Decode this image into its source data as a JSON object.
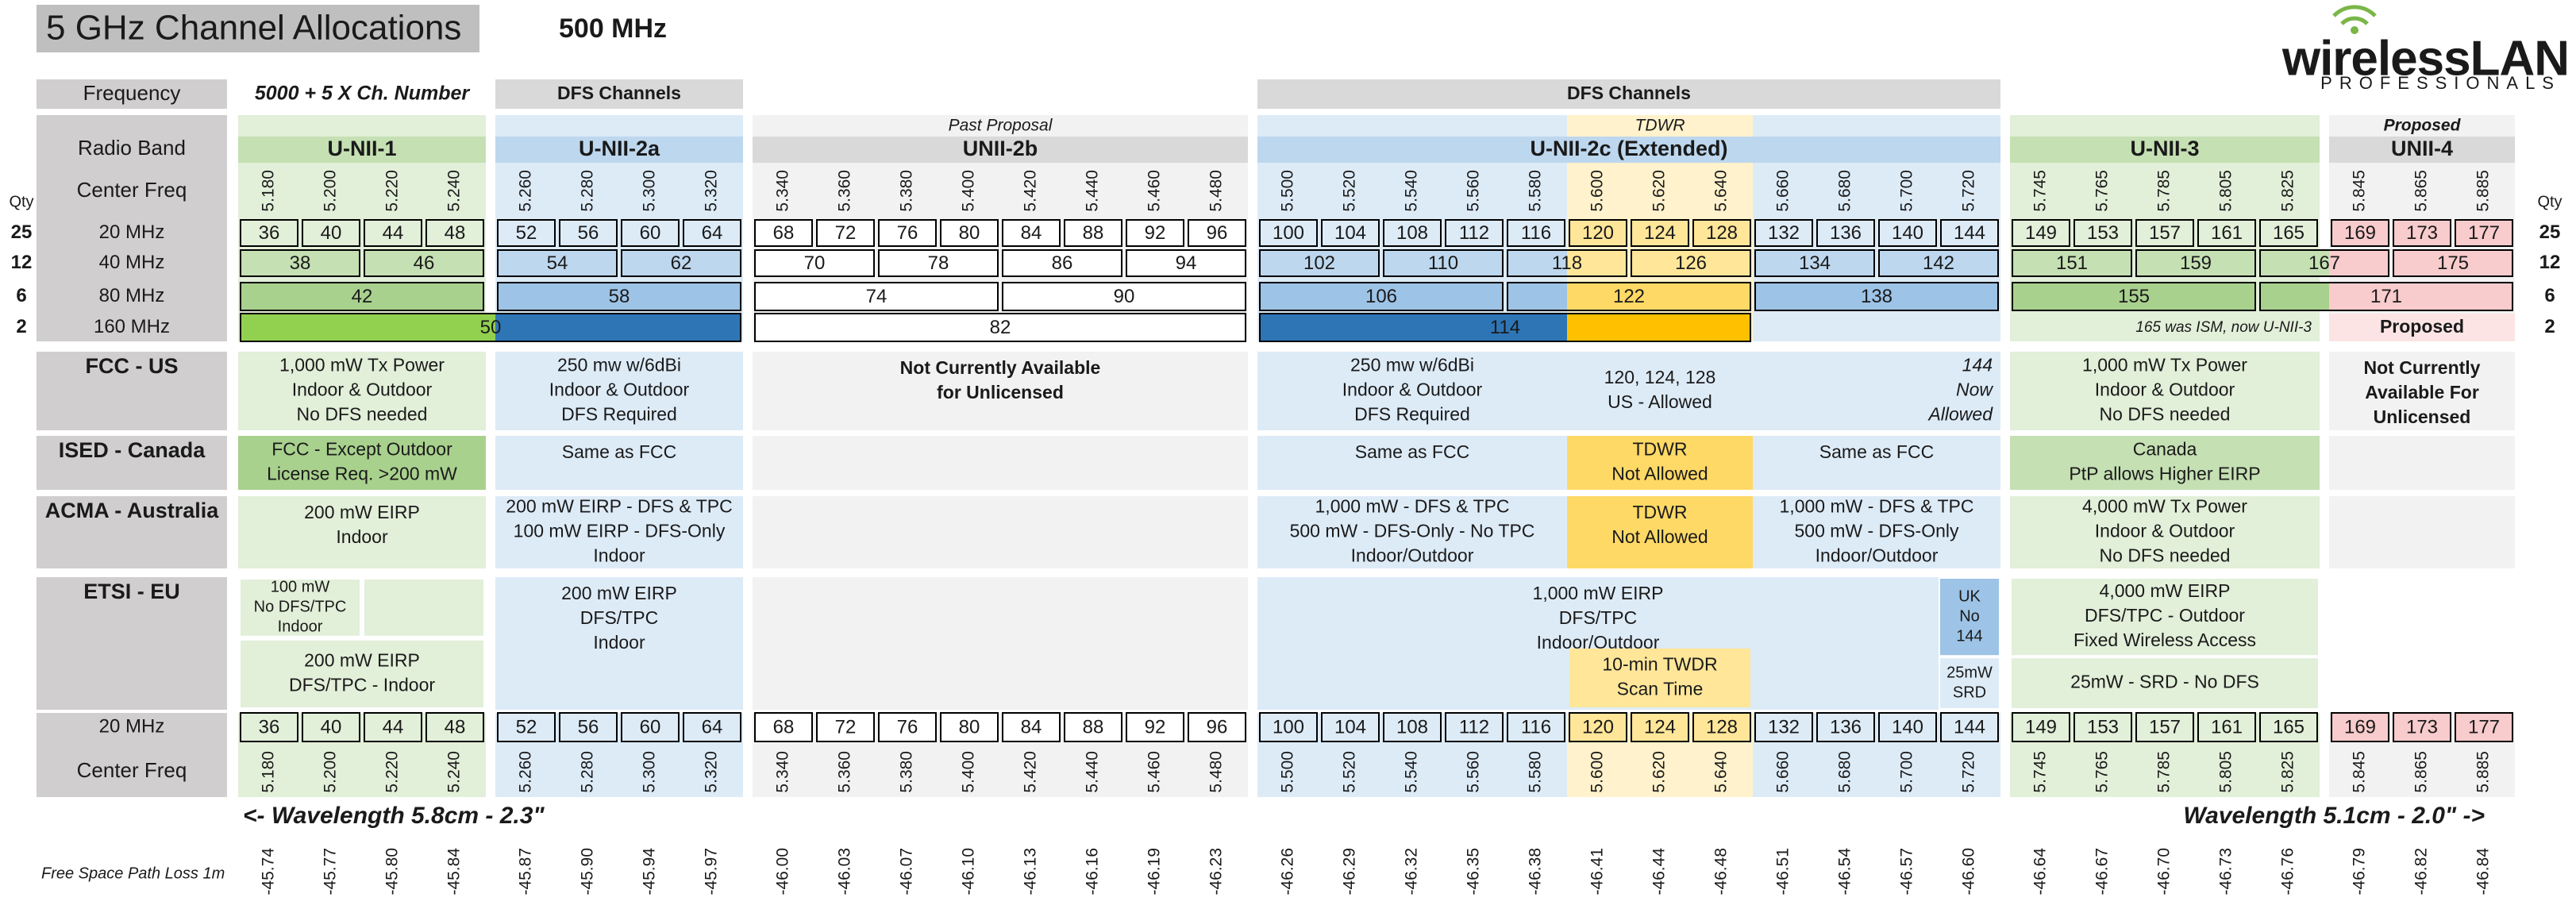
{
  "header": {
    "title": "5 GHz Channel Allocations",
    "span": "500 MHz",
    "logo": {
      "name": "wirelessLAN",
      "tagline": "PROFESSIONALS"
    }
  },
  "frequency_row": {
    "label": "Frequency",
    "formula": "5000 + 5 X Ch. Number",
    "dfs_labels": [
      "DFS Channels",
      "DFS Channels"
    ]
  },
  "band_row": {
    "label": "Radio Band",
    "bands": [
      {
        "name": "U-NII-1"
      },
      {
        "name": "U-NII-2a"
      },
      {
        "name": "UNII-2b",
        "note": "Past Proposal"
      },
      {
        "name": "U-NII-2c (Extended)",
        "note": "TDWR"
      },
      {
        "name": "U-NII-3"
      },
      {
        "name": "UNII-4",
        "note": "Proposed"
      }
    ]
  },
  "center_freq": {
    "label": "Center Freq",
    "values": [
      "5.180",
      "5.200",
      "5.220",
      "5.240",
      "5.260",
      "5.280",
      "5.300",
      "5.320",
      "5.340",
      "5.360",
      "5.380",
      "5.400",
      "5.420",
      "5.440",
      "5.460",
      "5.480",
      "5.500",
      "5.520",
      "5.540",
      "5.560",
      "5.580",
      "5.600",
      "5.620",
      "5.640",
      "5.660",
      "5.680",
      "5.700",
      "5.720",
      "5.745",
      "5.765",
      "5.785",
      "5.805",
      "5.825",
      "5.845",
      "5.865",
      "5.885"
    ]
  },
  "qty_label": "Qty",
  "widths": [
    {
      "label": "20 MHz",
      "qty": 25,
      "channels": [
        36,
        40,
        44,
        48,
        52,
        56,
        60,
        64,
        68,
        72,
        76,
        80,
        84,
        88,
        92,
        96,
        100,
        104,
        108,
        112,
        116,
        120,
        124,
        128,
        132,
        136,
        140,
        144,
        149,
        153,
        157,
        161,
        165,
        169,
        173,
        177
      ]
    },
    {
      "label": "40 MHz",
      "qty": 12,
      "channels": [
        38,
        46,
        54,
        62,
        70,
        78,
        86,
        94,
        102,
        110,
        118,
        126,
        134,
        142,
        151,
        159,
        167,
        175
      ]
    },
    {
      "label": "80 MHz",
      "qty": 6,
      "channels": [
        42,
        58,
        74,
        90,
        106,
        122,
        138,
        155,
        171
      ]
    },
    {
      "label": "160 MHz",
      "qty": 2,
      "channels": [
        50,
        82,
        114
      ]
    }
  ],
  "notes_160": {
    "ism": "165 was ISM, now U-NII-3",
    "proposed": "Proposed"
  },
  "regions": [
    {
      "name": "FCC - US",
      "cells": [
        [
          "1,000 mW Tx Power",
          "Indoor & Outdoor",
          "No DFS needed"
        ],
        [
          "250 mw w/6dBi",
          "Indoor & Outdoor",
          "DFS Required"
        ],
        [
          "Not Currently Available",
          "for Unlicensed"
        ],
        [
          "250 mw w/6dBi",
          "Indoor & Outdoor",
          "DFS Required"
        ],
        [
          "120, 124, 128",
          "US - Allowed"
        ],
        [
          "144",
          "Now",
          "Allowed"
        ],
        [
          "1,000 mW Tx Power",
          "Indoor & Outdoor",
          "No DFS needed"
        ],
        [
          "Not Currently",
          "Available For",
          "Unlicensed"
        ]
      ]
    },
    {
      "name": "ISED - Canada",
      "cells": [
        [
          "FCC  - Except Outdoor",
          "License Req. >200 mW"
        ],
        [
          "Same as FCC"
        ],
        [
          "Same as FCC"
        ],
        [
          "TDWR",
          "Not Allowed"
        ],
        [
          "Same as FCC"
        ],
        [
          "Canada",
          "PtP allows Higher EIRP"
        ]
      ]
    },
    {
      "name": "ACMA - Australia",
      "cells": [
        [
          "200 mW EIRP",
          "Indoor"
        ],
        [
          "200 mW EIRP - DFS & TPC",
          "100 mW EIRP - DFS-Only",
          "Indoor"
        ],
        [
          "1,000 mW - DFS & TPC",
          "500 mW - DFS-Only - No TPC",
          "Indoor/Outdoor"
        ],
        [
          "TDWR",
          "Not Allowed"
        ],
        [
          "1,000 mW - DFS & TPC",
          "500 mW - DFS-Only",
          "Indoor/Outdoor"
        ],
        [
          "4,000 mW Tx Power",
          "Indoor & Outdoor",
          "No DFS needed"
        ]
      ]
    },
    {
      "name": "ETSI - EU",
      "cells": [
        [
          "100 mW",
          "No DFS/TPC",
          "Indoor"
        ],
        [
          "200 mW EIRP",
          "DFS/TPC - Indoor"
        ],
        [
          "200 mW EIRP",
          "DFS/TPC",
          "Indoor"
        ],
        [
          "1,000 mW EIRP",
          "DFS/TPC",
          "Indoor/Outdoor"
        ],
        [
          "10-min TWDR",
          "Scan Time"
        ],
        [
          "UK",
          "No",
          "144"
        ],
        [
          "25mW",
          "SRD"
        ],
        [
          "4,000 mW  EIRP",
          "DFS/TPC  -  Outdoor",
          "Fixed Wireless Access"
        ],
        [
          "25mW - SRD - No DFS"
        ]
      ]
    }
  ],
  "wavelength": {
    "left": "<- Wavelength 5.8cm - 2.3\"",
    "right": "Wavelength 5.1cm - 2.0\" ->"
  },
  "fspl": {
    "label": "Free Space Path Loss 1m",
    "values": [
      "-45.74",
      "-45.77",
      "-45.80",
      "-45.84",
      "-45.87",
      "-45.90",
      "-45.94",
      "-45.97",
      "-46.00",
      "-46.03",
      "-46.07",
      "-46.10",
      "-46.13",
      "-46.16",
      "-46.19",
      "-46.23",
      "-46.26",
      "-46.29",
      "-46.32",
      "-46.35",
      "-46.38",
      "-46.41",
      "-46.44",
      "-46.48",
      "-46.51",
      "-46.54",
      "-46.57",
      "-46.60",
      "-46.64",
      "-46.67",
      "-46.70",
      "-46.73",
      "-46.76",
      "-46.79",
      "-46.82",
      "-46.84"
    ]
  }
}
